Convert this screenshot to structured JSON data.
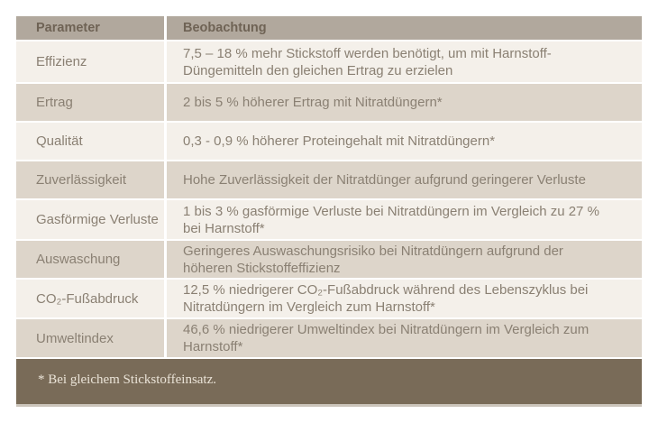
{
  "table": {
    "header": {
      "param": "Parameter",
      "obs": "Beobachtung"
    },
    "rows": [
      {
        "param": "Effizienz",
        "obs": "7,5 – 18 % mehr Stickstoff werden benötigt, um mit Harnstoff-Düngemitteln den gleichen Ertrag zu erzielen"
      },
      {
        "param": "Ertrag",
        "obs": "2 bis 5 % höherer Ertrag mit Nitratdüngern*"
      },
      {
        "param": "Qualität",
        "obs": "0,3 - 0,9 % höherer Proteingehalt mit Nitratdüngern*"
      },
      {
        "param": "Zuverlässigkeit",
        "obs": "Hohe Zuverlässigkeit der Nitratdünger aufgrund geringerer Verluste"
      },
      {
        "param": "Gasförmige Verluste",
        "obs": "1 bis 3 % gasförmige Verluste bei Nitratdüngern im Vergleich zu 27 % bei Harnstoff*"
      },
      {
        "param": "Auswaschung",
        "obs": "Geringeres Auswaschungsrisiko bei Nitratdüngern aufgrund der höheren Stickstoffeffizienz"
      },
      {
        "param": "CO₂-Fußabdruck",
        "obs": "12,5 % niedrigerer CO₂-Fußabdruck während des Lebenszyklus bei Nitratdüngern im Vergleich zum Harnstoff*"
      },
      {
        "param": "Umweltindex",
        "obs": "46,6 % niedrigerer Umweltindex bei Nitratdüngern im Vergleich zum Harnstoff*"
      }
    ],
    "footnote": "* Bei gleichem Stickstoffeinsatz."
  },
  "colors": {
    "header_bg": "#b1a89d",
    "header_text": "#6f6355",
    "row_light_bg": "#f4f0ea",
    "row_dark_bg": "#ddd5ca",
    "body_text": "#8a8073",
    "footnote_bg": "#796b58",
    "footnote_text": "#eae3d7",
    "divider": "#ffffff",
    "bottom_strip": "#cbc4ba"
  }
}
